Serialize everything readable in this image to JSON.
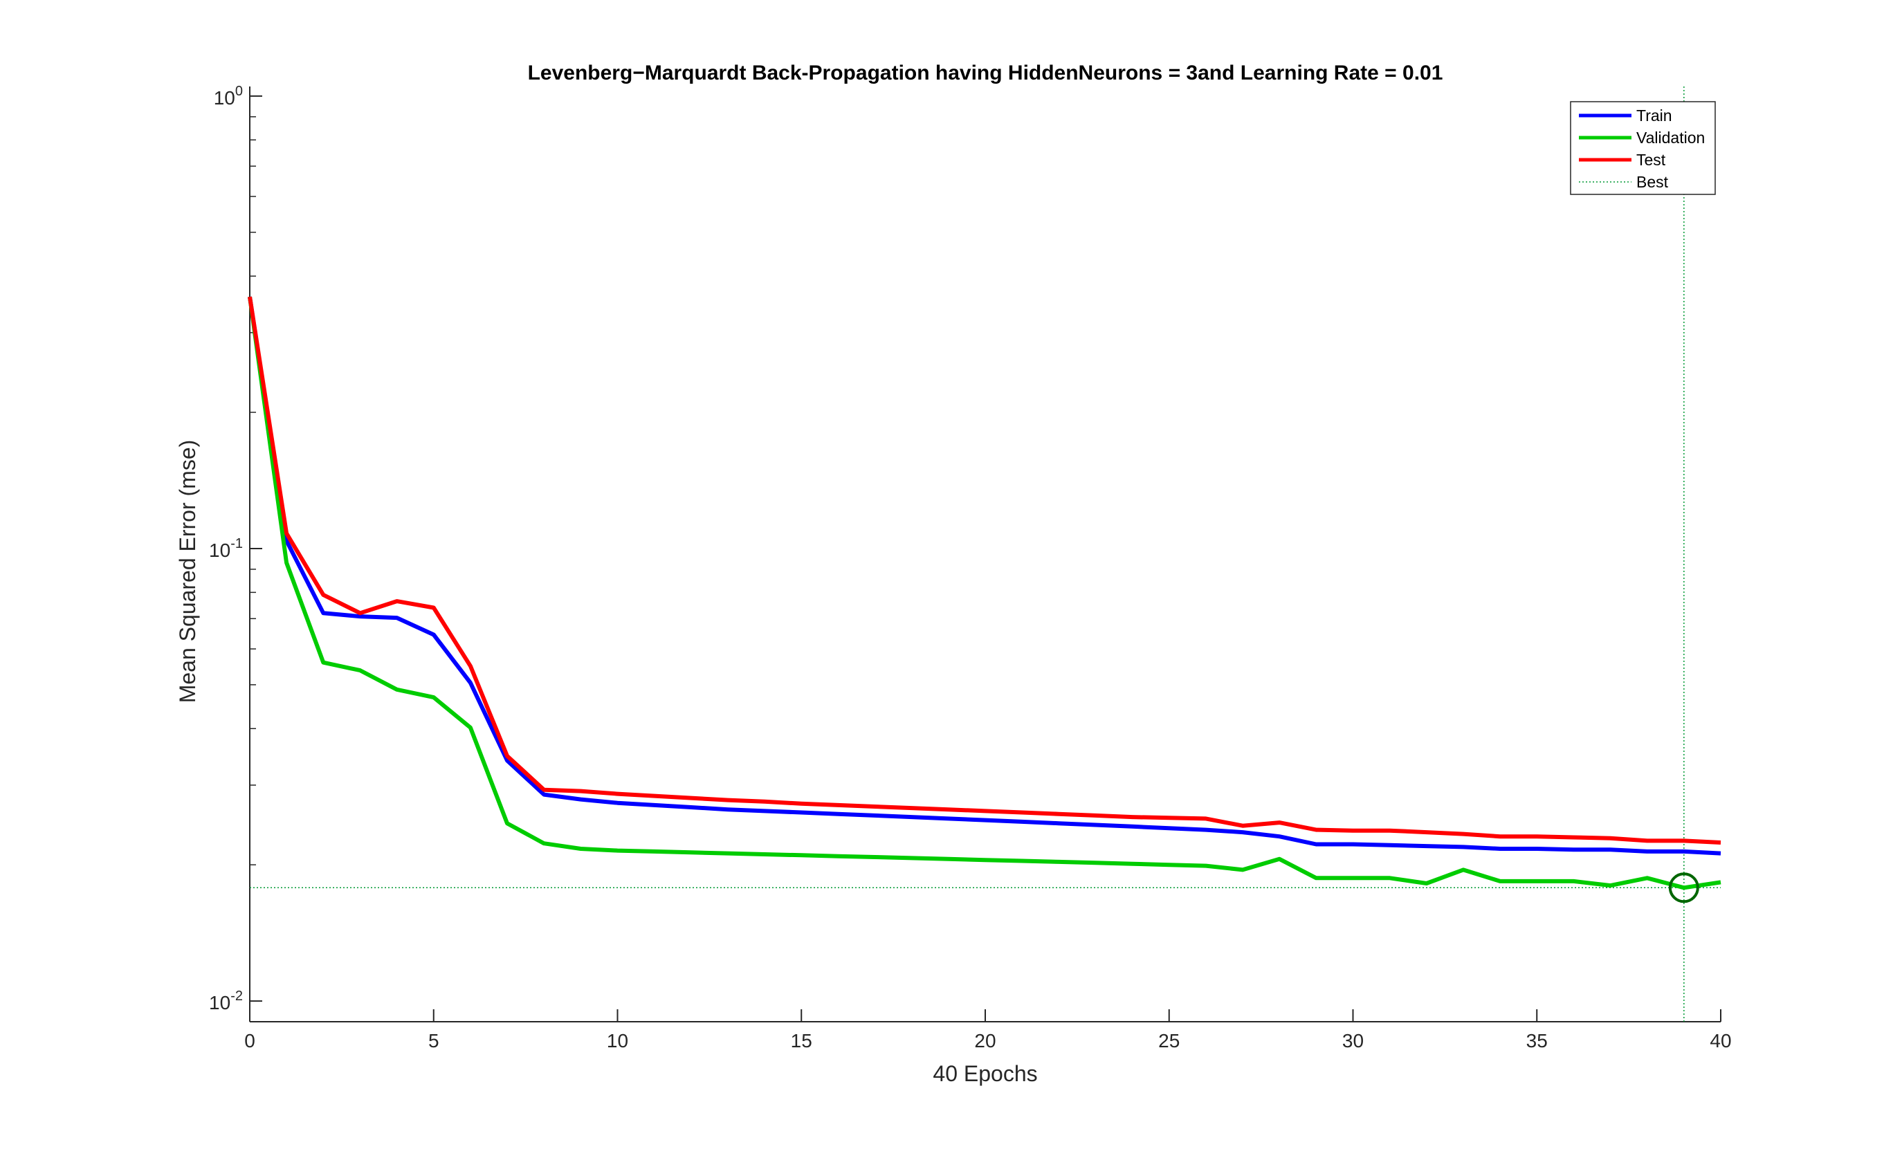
{
  "chart_data": {
    "type": "line",
    "title": "Levenberg−Marquardt Back-Propagation having HiddenNeurons = 3and Learning Rate = 0.01",
    "xlabel": "40 Epochs",
    "ylabel": "Mean Squared Error  (mse)",
    "xlim": [
      0,
      40
    ],
    "ylim": [
      0.009,
      1.05
    ],
    "yscale": "log",
    "grid": false,
    "legend_position": "top-right",
    "x_ticks": [
      0,
      5,
      10,
      15,
      20,
      25,
      30,
      35,
      40
    ],
    "y_ticks": [
      {
        "value": 0.01,
        "base": "10",
        "exp": "-2"
      },
      {
        "value": 0.1,
        "base": "10",
        "exp": "-1"
      },
      {
        "value": 1,
        "base": "10",
        "exp": "0"
      }
    ],
    "series": [
      {
        "name": "Train",
        "color": "#0000ff",
        "x": [
          0,
          1,
          2,
          3,
          4,
          5,
          6,
          7,
          8,
          9,
          10,
          11,
          12,
          13,
          14,
          15,
          16,
          17,
          18,
          19,
          20,
          21,
          22,
          23,
          24,
          25,
          26,
          27,
          28,
          29,
          30,
          31,
          32,
          33,
          34,
          35,
          36,
          37,
          38,
          39,
          40
        ],
        "values": [
          0.36,
          0.104,
          0.072,
          0.0708,
          0.0703,
          0.0645,
          0.0505,
          0.034,
          0.0286,
          0.0279,
          0.0274,
          0.0271,
          0.0268,
          0.0265,
          0.0263,
          0.0261,
          0.0259,
          0.0257,
          0.0255,
          0.0253,
          0.0251,
          0.0249,
          0.0247,
          0.0245,
          0.0243,
          0.0241,
          0.0239,
          0.0236,
          0.0231,
          0.0222,
          0.0222,
          0.0221,
          0.022,
          0.0219,
          0.0217,
          0.0217,
          0.0216,
          0.0216,
          0.0214,
          0.0214,
          0.0212
        ]
      },
      {
        "name": "Validation",
        "color": "#00cc00",
        "x": [
          0,
          1,
          2,
          3,
          4,
          5,
          6,
          7,
          8,
          9,
          10,
          11,
          12,
          13,
          14,
          15,
          16,
          17,
          18,
          19,
          20,
          21,
          22,
          23,
          24,
          25,
          26,
          27,
          28,
          29,
          30,
          31,
          32,
          33,
          34,
          35,
          36,
          37,
          38,
          39,
          40
        ],
        "values": [
          0.36,
          0.093,
          0.056,
          0.0538,
          0.0488,
          0.0469,
          0.0402,
          0.0247,
          0.0223,
          0.0217,
          0.0215,
          0.0214,
          0.0213,
          0.0212,
          0.0211,
          0.021,
          0.0209,
          0.0208,
          0.0207,
          0.0206,
          0.0205,
          0.0204,
          0.0203,
          0.0202,
          0.0201,
          0.02,
          0.0199,
          0.0195,
          0.0206,
          0.0187,
          0.0187,
          0.0187,
          0.0182,
          0.0195,
          0.0184,
          0.0184,
          0.0184,
          0.018,
          0.0187,
          0.0178,
          0.0183
        ]
      },
      {
        "name": "Test",
        "color": "#ff0000",
        "x": [
          0,
          1,
          2,
          3,
          4,
          5,
          6,
          7,
          8,
          9,
          10,
          11,
          12,
          13,
          14,
          15,
          16,
          17,
          18,
          19,
          20,
          21,
          22,
          23,
          24,
          25,
          26,
          27,
          28,
          29,
          30,
          31,
          32,
          33,
          34,
          35,
          36,
          37,
          38,
          39,
          40
        ],
        "values": [
          0.36,
          0.108,
          0.079,
          0.072,
          0.0765,
          0.074,
          0.055,
          0.0348,
          0.0293,
          0.0291,
          0.0287,
          0.0284,
          0.0281,
          0.0278,
          0.0276,
          0.0273,
          0.0271,
          0.0269,
          0.0267,
          0.0265,
          0.0263,
          0.0261,
          0.0259,
          0.0257,
          0.0255,
          0.0254,
          0.0253,
          0.0244,
          0.0248,
          0.0239,
          0.0238,
          0.0238,
          0.0236,
          0.0234,
          0.0231,
          0.0231,
          0.023,
          0.0229,
          0.0226,
          0.0226,
          0.0224
        ]
      }
    ],
    "best": {
      "name": "Best",
      "color": "#009933",
      "epoch": 39,
      "value": 0.0178
    }
  }
}
